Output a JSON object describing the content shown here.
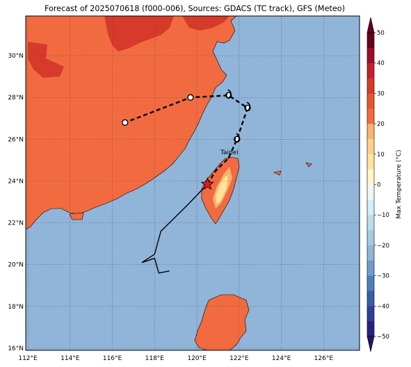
{
  "title": "Forecast of 2025070618 (f000-006), Sources: GDACS (TC track), GFS (Meteo)",
  "colors": {
    "sea": "#91b4d9",
    "land_warm": "#f26b40",
    "land_hot": "#d63a2b",
    "land_mild": "#fbb36d",
    "land_cool": "#fee49b",
    "track_observed": "#000000",
    "track_forecast": "#000000",
    "current_position_marker": "#e31a1c",
    "grid": "#444444"
  },
  "axes": {
    "lon_ticks": [
      "112°E",
      "114°E",
      "116°E",
      "118°E",
      "120°E",
      "122°E",
      "124°E",
      "126°E"
    ],
    "lat_ticks": [
      "30°N",
      "28°N",
      "26°N",
      "24°N",
      "22°N",
      "20°N",
      "18°N",
      "16°N"
    ]
  },
  "places": [
    {
      "name": "Taipei",
      "icon": "city-label"
    }
  ],
  "storm": {
    "icon": "tropical-cyclone-symbol",
    "current_marker_icon": "star-icon",
    "current_position": {
      "lon": 120.5,
      "lat": 23.85
    },
    "observed_track": [
      {
        "lon": 118.7,
        "lat": 19.7
      },
      {
        "lon": 118.2,
        "lat": 19.6
      },
      {
        "lon": 118.0,
        "lat": 20.3
      },
      {
        "lon": 117.4,
        "lat": 20.1
      },
      {
        "lon": 118.0,
        "lat": 20.5
      },
      {
        "lon": 118.3,
        "lat": 21.6
      },
      {
        "lon": 118.9,
        "lat": 22.2
      },
      {
        "lon": 119.6,
        "lat": 22.9
      },
      {
        "lon": 120.5,
        "lat": 23.85
      }
    ],
    "forecast_track": [
      {
        "lon": 120.5,
        "lat": 23.85
      },
      {
        "lon": 120.9,
        "lat": 24.5
      },
      {
        "lon": 121.5,
        "lat": 25.1
      },
      {
        "lon": 121.9,
        "lat": 26.0
      },
      {
        "lon": 122.4,
        "lat": 27.5
      },
      {
        "lon": 121.5,
        "lat": 28.1
      },
      {
        "lon": 119.7,
        "lat": 28.0
      },
      {
        "lon": 116.6,
        "lat": 26.8
      }
    ],
    "forecast_symbols": [
      {
        "lon": 121.9,
        "lat": 26.0
      },
      {
        "lon": 122.4,
        "lat": 27.5
      },
      {
        "lon": 121.5,
        "lat": 28.1
      }
    ],
    "forecast_circles": [
      {
        "lon": 121.9,
        "lat": 26.0
      },
      {
        "lon": 122.4,
        "lat": 27.5
      },
      {
        "lon": 121.5,
        "lat": 28.1
      },
      {
        "lon": 119.7,
        "lat": 28.0
      },
      {
        "lon": 116.6,
        "lat": 26.8
      }
    ]
  },
  "colorbar": {
    "label": "Max Temperature (°C)",
    "tick_labels": [
      "50",
      "40",
      "30",
      "20",
      "10",
      "0",
      "−10",
      "−20",
      "−30",
      "−40",
      "−50"
    ],
    "levels": [
      {
        "from": 45,
        "to": 50,
        "color": "#67001f"
      },
      {
        "from": 40,
        "to": 45,
        "color": "#9e0d26"
      },
      {
        "from": 35,
        "to": 40,
        "color": "#c5202e"
      },
      {
        "from": 30,
        "to": 35,
        "color": "#d63a2b"
      },
      {
        "from": 25,
        "to": 30,
        "color": "#e5562f"
      },
      {
        "from": 20,
        "to": 25,
        "color": "#f26b40"
      },
      {
        "from": 15,
        "to": 20,
        "color": "#fbb36d"
      },
      {
        "from": 10,
        "to": 15,
        "color": "#fdd08a"
      },
      {
        "from": 5,
        "to": 10,
        "color": "#fee49b"
      },
      {
        "from": 0,
        "to": 5,
        "color": "#fff5c8"
      },
      {
        "from": -5,
        "to": 0,
        "color": "#eef8f4"
      },
      {
        "from": -10,
        "to": -5,
        "color": "#d6eef5"
      },
      {
        "from": -15,
        "to": -10,
        "color": "#bcdceb"
      },
      {
        "from": -20,
        "to": -15,
        "color": "#a3cbe2"
      },
      {
        "from": -25,
        "to": -20,
        "color": "#91b4d9"
      },
      {
        "from": -30,
        "to": -25,
        "color": "#6f9ccb"
      },
      {
        "from": -35,
        "to": -30,
        "color": "#4f7fbb"
      },
      {
        "from": -40,
        "to": -35,
        "color": "#3a5ea9"
      },
      {
        "from": -45,
        "to": -40,
        "color": "#2d3f97"
      },
      {
        "from": -50,
        "to": -45,
        "color": "#262382"
      }
    ],
    "extend_top_color": "#67001f",
    "extend_bottom_color": "#1f1a6e"
  }
}
